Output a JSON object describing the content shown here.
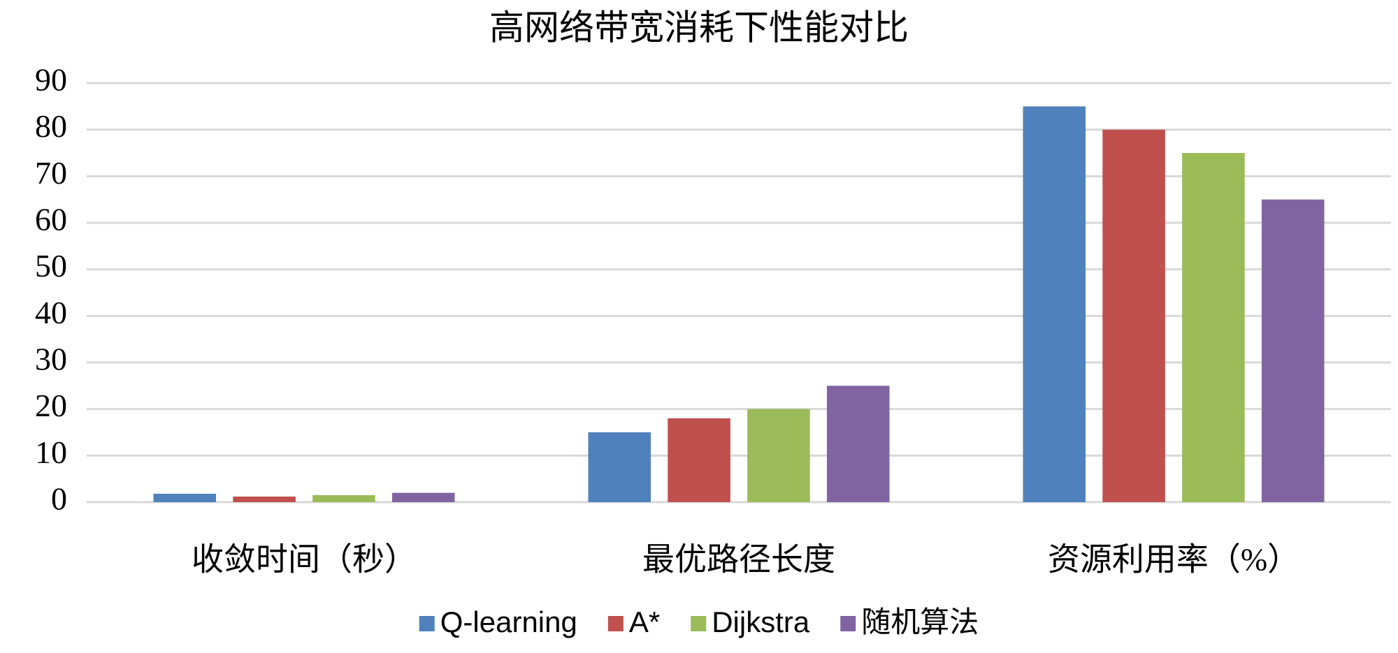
{
  "chart_data": {
    "type": "bar",
    "title": "高网络带宽消耗下性能对比",
    "categories": [
      "收敛时间（秒）",
      "最优路径长度",
      "资源利用率（%）"
    ],
    "series": [
      {
        "name": "Q-learning",
        "color": "#4f81bd",
        "values": [
          1.8,
          15,
          85
        ]
      },
      {
        "name": "A*",
        "color": "#c0504d",
        "values": [
          1.2,
          18,
          80
        ]
      },
      {
        "name": "Dijkstra",
        "color": "#9bbb59",
        "values": [
          1.5,
          20,
          75
        ]
      },
      {
        "name": "随机算法",
        "color": "#8064a2",
        "values": [
          2.0,
          25,
          65
        ]
      }
    ],
    "ylim": [
      0,
      90
    ],
    "yticks": [
      0,
      10,
      20,
      30,
      40,
      50,
      60,
      70,
      80,
      90
    ],
    "grid": true,
    "legend": "bottom"
  }
}
